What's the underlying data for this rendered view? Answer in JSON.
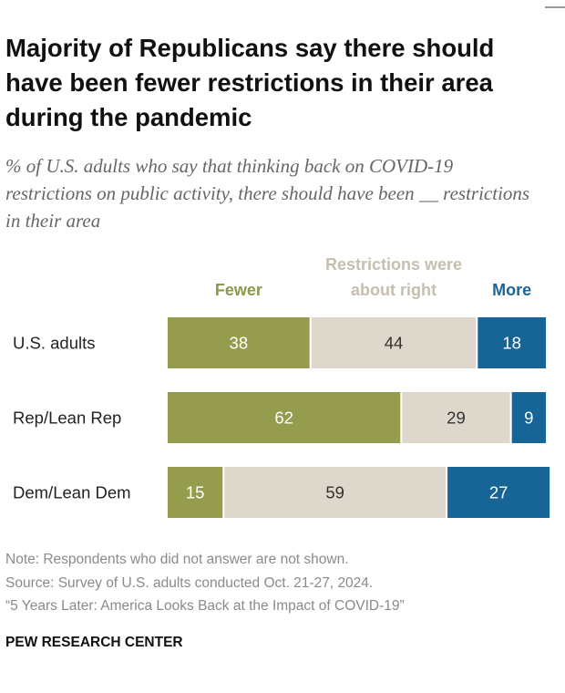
{
  "chart_data": {
    "type": "bar",
    "orientation": "horizontal",
    "stacked": true,
    "title": "Majority of Republicans say there should have been fewer restrictions in their area during the pandemic",
    "subtitle": "% of U.S. adults who say that thinking back on COVID-19 restrictions on public activity, there should have been __ restrictions in their area",
    "categories": [
      "U.S. adults",
      "Rep/Lean Rep",
      "Dem/Lean Dem"
    ],
    "series": [
      {
        "name": "Fewer",
        "color": "#959c4d",
        "legend_color": "#8f9748",
        "label_color": "#ffffff",
        "values": [
          38,
          62,
          15
        ]
      },
      {
        "name": "Restrictions were about right",
        "color": "#ddd8cb",
        "legend_color": "#c5bfae",
        "label_color": "#333333",
        "values": [
          44,
          29,
          59
        ]
      },
      {
        "name": "More",
        "color": "#166596",
        "legend_color": "#1c6598",
        "label_color": "#ffffff",
        "values": [
          18,
          9,
          27
        ]
      }
    ],
    "notes": [
      "Note: Respondents who did not answer are not shown.",
      "Source: Survey of U.S. adults conducted Oct. 21-27, 2024.",
      "“5 Years Later: America Looks Back at the Impact of COVID-19”"
    ],
    "credit": "PEW RESEARCH CENTER"
  }
}
